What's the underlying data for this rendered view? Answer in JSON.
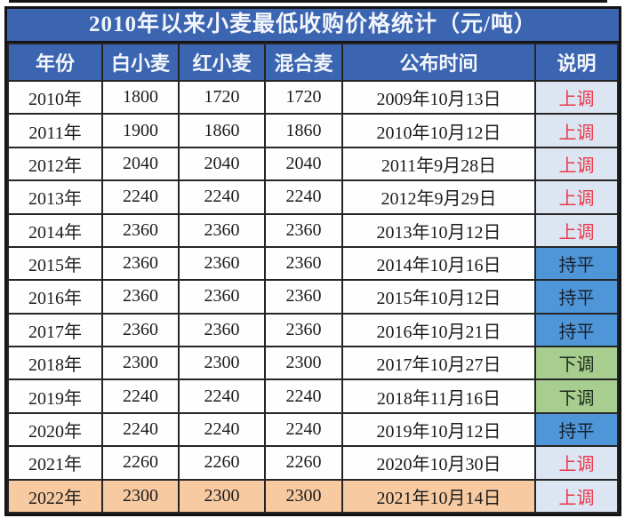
{
  "page": {
    "title": "2010年以来小麦最低收购价格统计（元/吨）"
  },
  "colors": {
    "header_bg": "#3b65b1",
    "header_text": "#f2f5fb",
    "grid_line": "#252525",
    "status_up_bg": "#dce5f2",
    "status_up_text": "#e8394b",
    "status_flat_bg": "#4e96d8",
    "status_down_bg": "#a7cd8f",
    "highlight_row_bg": "#f7caa2"
  },
  "chart_data": {
    "type": "table",
    "title": "2010年以来小麦最低收购价格统计（元/吨）",
    "columns": [
      "年份",
      "白小麦",
      "红小麦",
      "混合麦",
      "公布时间",
      "说明"
    ],
    "status_legend": {
      "up": "上调",
      "flat": "持平",
      "down": "下调"
    },
    "rows": [
      {
        "year": "2010年",
        "white_wheat": "1800",
        "red_wheat": "1720",
        "mixed_wheat": "1720",
        "publish_date": "2009年10月13日",
        "status": "上调",
        "status_type": "up",
        "highlight": false
      },
      {
        "year": "2011年",
        "white_wheat": "1900",
        "red_wheat": "1860",
        "mixed_wheat": "1860",
        "publish_date": "2010年10月12日",
        "status": "上调",
        "status_type": "up",
        "highlight": false
      },
      {
        "year": "2012年",
        "white_wheat": "2040",
        "red_wheat": "2040",
        "mixed_wheat": "2040",
        "publish_date": "2011年9月28日",
        "status": "上调",
        "status_type": "up",
        "highlight": false
      },
      {
        "year": "2013年",
        "white_wheat": "2240",
        "red_wheat": "2240",
        "mixed_wheat": "2240",
        "publish_date": "2012年9月29日",
        "status": "上调",
        "status_type": "up",
        "highlight": false
      },
      {
        "year": "2014年",
        "white_wheat": "2360",
        "red_wheat": "2360",
        "mixed_wheat": "2360",
        "publish_date": "2013年10月12日",
        "status": "上调",
        "status_type": "up",
        "highlight": false
      },
      {
        "year": "2015年",
        "white_wheat": "2360",
        "red_wheat": "2360",
        "mixed_wheat": "2360",
        "publish_date": "2014年10月16日",
        "status": "持平",
        "status_type": "flat",
        "highlight": false
      },
      {
        "year": "2016年",
        "white_wheat": "2360",
        "red_wheat": "2360",
        "mixed_wheat": "2360",
        "publish_date": "2015年10月12日",
        "status": "持平",
        "status_type": "flat",
        "highlight": false
      },
      {
        "year": "2017年",
        "white_wheat": "2360",
        "red_wheat": "2360",
        "mixed_wheat": "2360",
        "publish_date": "2016年10月21日",
        "status": "持平",
        "status_type": "flat",
        "highlight": false
      },
      {
        "year": "2018年",
        "white_wheat": "2300",
        "red_wheat": "2300",
        "mixed_wheat": "2300",
        "publish_date": "2017年10月27日",
        "status": "下调",
        "status_type": "down",
        "highlight": false
      },
      {
        "year": "2019年",
        "white_wheat": "2240",
        "red_wheat": "2240",
        "mixed_wheat": "2240",
        "publish_date": "2018年11月16日",
        "status": "下调",
        "status_type": "down",
        "highlight": false
      },
      {
        "year": "2020年",
        "white_wheat": "2240",
        "red_wheat": "2240",
        "mixed_wheat": "2240",
        "publish_date": "2019年10月12日",
        "status": "持平",
        "status_type": "flat",
        "highlight": false
      },
      {
        "year": "2021年",
        "white_wheat": "2260",
        "red_wheat": "2260",
        "mixed_wheat": "2260",
        "publish_date": "2020年10月30日",
        "status": "上调",
        "status_type": "up",
        "highlight": false
      },
      {
        "year": "2022年",
        "white_wheat": "2300",
        "red_wheat": "2300",
        "mixed_wheat": "2300",
        "publish_date": "2021年10月14日",
        "status": "上调",
        "status_type": "up",
        "highlight": true
      }
    ]
  }
}
